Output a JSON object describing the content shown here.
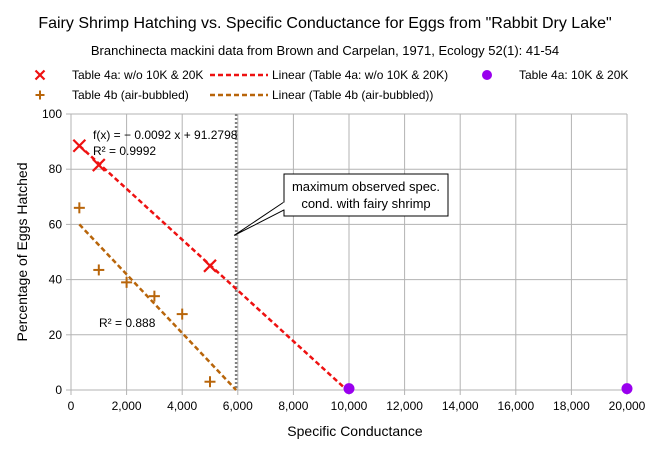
{
  "chart_data": {
    "type": "scatter",
    "title": "Fairy Shrimp Hatching vs. Specific Conductance for Eggs from \"Rabbit Dry Lake\"",
    "subtitle": "Branchinecta mackini data from Brown and Carpelan, 1971, Ecology 52(1): 41-54",
    "xlabel": "Specific Conductance",
    "ylabel": "Percentage of Eggs Hatched",
    "xlim": [
      0,
      20000
    ],
    "ylim": [
      0,
      100
    ],
    "x_ticks": [
      0,
      2000,
      4000,
      6000,
      8000,
      10000,
      12000,
      14000,
      16000,
      18000,
      20000
    ],
    "x_tick_labels": [
      "0",
      "2,000",
      "4,000",
      "6,000",
      "8,000",
      "10,000",
      "12,000",
      "14,000",
      "16,000",
      "18,000",
      "20,000"
    ],
    "y_ticks": [
      0,
      20,
      40,
      60,
      80,
      100
    ],
    "y_tick_labels": [
      "0",
      "20",
      "40",
      "60",
      "80",
      "100"
    ],
    "grid": true,
    "legend_position": "top",
    "series": [
      {
        "name": "Table 4a: w/o 10K & 20K",
        "marker": "x",
        "color": "#ee1111",
        "points": [
          [
            300,
            88.5
          ],
          [
            1000,
            81.5
          ],
          [
            5000,
            45
          ]
        ]
      },
      {
        "name": "Table 4a: 10K & 20K",
        "marker": "circle",
        "color": "#9900ee",
        "points": [
          [
            10000,
            0.5
          ],
          [
            20000,
            0.5
          ]
        ]
      },
      {
        "name": "Table 4b (air-bubbled)",
        "marker": "plus",
        "color": "#b8650a",
        "points": [
          [
            300,
            66
          ],
          [
            1000,
            43.5
          ],
          [
            2000,
            39
          ],
          [
            3000,
            34
          ],
          [
            4000,
            27.5
          ],
          [
            5000,
            3
          ]
        ]
      }
    ],
    "trendlines": [
      {
        "name": "Linear (Table 4a: w/o 10K & 20K)",
        "color": "#ee1111",
        "slope": -0.0092,
        "intercept": 91.2798,
        "x_range": [
          300,
          9922
        ],
        "equation": "f(x) = − 0.0092 x + 91.2798",
        "r2": "R² = 0.9992"
      },
      {
        "name": "Linear (Table 4b (air-bubbled))",
        "color": "#b8650a",
        "slope": -0.01064,
        "intercept": 63.19,
        "x_range": [
          300,
          5939
        ],
        "r2": "R² = 0.888"
      }
    ],
    "reference_line": {
      "x": 5939,
      "color": "#808080"
    },
    "annotation": "maximum observed spec.\ncond. with fairy shrimp"
  }
}
